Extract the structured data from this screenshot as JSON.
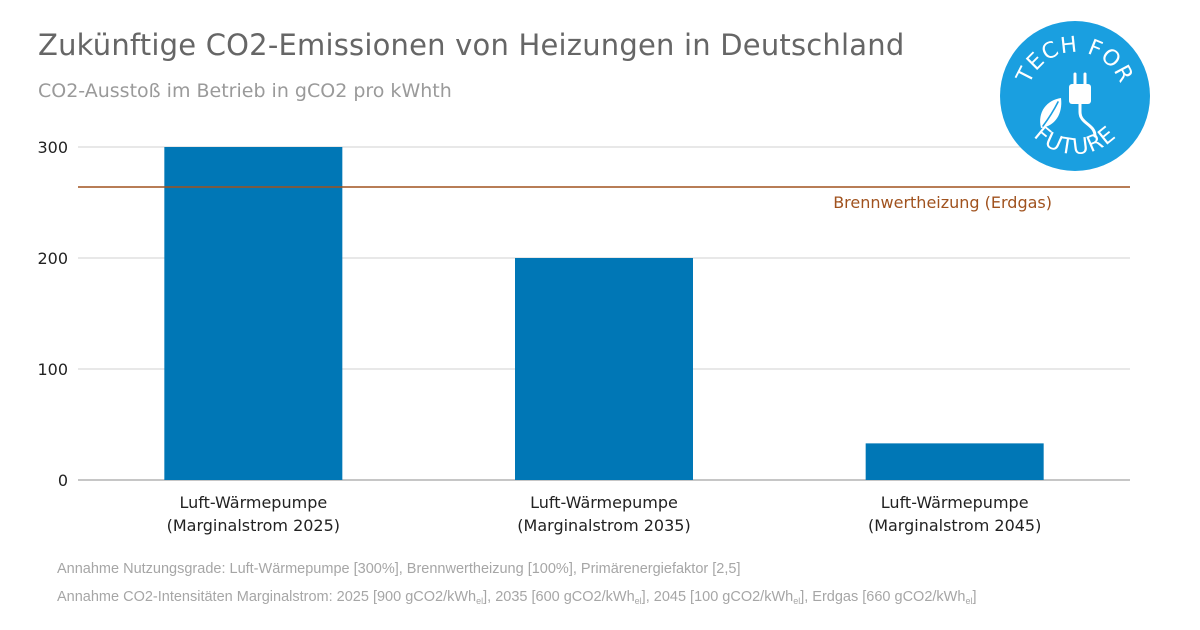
{
  "chart_data": {
    "type": "bar",
    "title": "Zukünftige CO2-Emissionen von Heizungen in Deutschland",
    "subtitle": "CO2-Ausstoß im Betrieb in gCO2 pro kWhth",
    "categories": [
      [
        "Luft-Wärmepumpe",
        "(Marginalstrom 2025)"
      ],
      [
        "Luft-Wärmepumpe",
        "(Marginalstrom 2035)"
      ],
      [
        "Luft-Wärmepumpe",
        "(Marginalstrom 2045)"
      ]
    ],
    "values": [
      300,
      200,
      33
    ],
    "ylim": [
      0,
      300
    ],
    "yticks": [
      0,
      100,
      200,
      300
    ],
    "grid": true,
    "bar_color": "#0077b6",
    "reference_line": {
      "label": "Brennwertheizung (Erdgas)",
      "value": 264,
      "color": "#a0521e"
    }
  },
  "footnotes": {
    "line1": "Annahme Nutzungsgrade: Luft-Wärmepumpe [300%], Brennwertheizung [100%], Primärenergiefaktor [2,5]",
    "line2_parts": [
      "Annahme CO2-Intensitäten Marginalstrom: 2025 [900 gCO2/kWh",
      "el",
      "], 2035 [600 gCO2/kWh",
      "el",
      "], 2045 [100 gCO2/kWh",
      "el",
      "], Erdgas [660 gCO2/kWh",
      "el",
      "]"
    ]
  },
  "logo": {
    "text_top": "TECH FOR",
    "text_bottom": "FUTURE",
    "color": "#1a9fe0",
    "icon": "plug-leaf-icon"
  }
}
